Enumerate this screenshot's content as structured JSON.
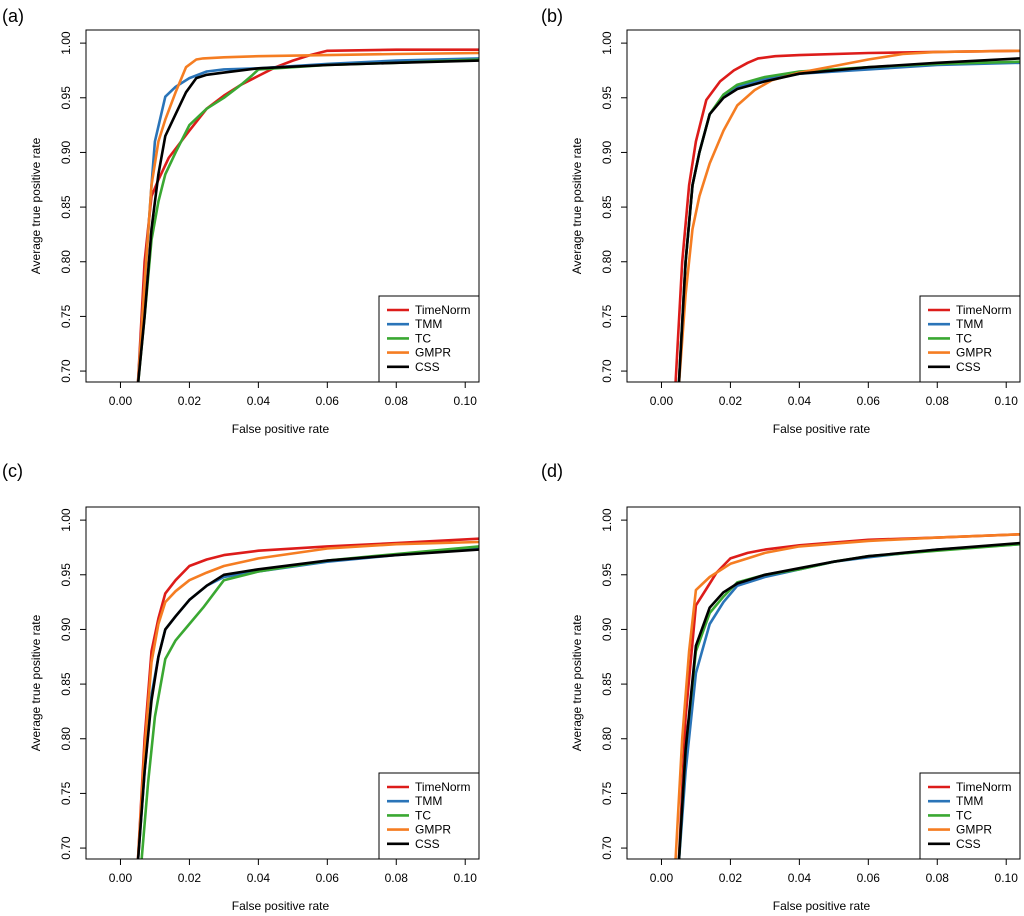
{
  "colors": {
    "TimeNorm": "#dd1c1a",
    "TMM": "#2a74b8",
    "TC": "#3aa832",
    "GMPR": "#f57d22",
    "CSS": "#000000",
    "axis": "#000000",
    "background": "#ffffff"
  },
  "chart_data": [
    {
      "panel_label": "(a)",
      "type": "line",
      "xlabel": "False positive rate",
      "ylabel": "Average true positive rate",
      "xlim": [
        -0.01,
        0.104
      ],
      "ylim": [
        0.69,
        1.012
      ],
      "xticks": [
        0.0,
        0.02,
        0.04,
        0.06,
        0.08,
        0.1
      ],
      "xtick_labels": [
        "0.00",
        "0.02",
        "0.04",
        "0.06",
        "0.08",
        "0.10"
      ],
      "yticks": [
        0.7,
        0.75,
        0.8,
        0.85,
        0.9,
        0.95,
        1.0
      ],
      "ytick_labels": [
        "0.70",
        "0.75",
        "0.80",
        "0.85",
        "0.90",
        "0.95",
        "1.00"
      ],
      "legend_position": "bottom-right",
      "series": [
        {
          "name": "TimeNorm",
          "x": [
            0.005,
            0.007,
            0.009,
            0.011,
            0.014,
            0.02,
            0.025,
            0.03,
            0.035,
            0.04,
            0.045,
            0.05,
            0.055,
            0.06,
            0.08,
            0.104
          ],
          "y": [
            0.685,
            0.8,
            0.86,
            0.875,
            0.895,
            0.92,
            0.94,
            0.952,
            0.962,
            0.97,
            0.978,
            0.984,
            0.989,
            0.993,
            0.994,
            0.994
          ]
        },
        {
          "name": "TMM",
          "x": [
            0.005,
            0.007,
            0.009,
            0.01,
            0.013,
            0.016,
            0.02,
            0.025,
            0.03,
            0.04,
            0.06,
            0.08,
            0.104
          ],
          "y": [
            0.685,
            0.78,
            0.87,
            0.91,
            0.951,
            0.96,
            0.968,
            0.974,
            0.976,
            0.977,
            0.981,
            0.984,
            0.986
          ]
        },
        {
          "name": "TC",
          "x": [
            0.005,
            0.007,
            0.009,
            0.011,
            0.013,
            0.016,
            0.02,
            0.025,
            0.03,
            0.035,
            0.038,
            0.04,
            0.06,
            0.08,
            0.104
          ],
          "y": [
            0.685,
            0.75,
            0.82,
            0.855,
            0.88,
            0.9,
            0.925,
            0.94,
            0.95,
            0.962,
            0.97,
            0.976,
            0.98,
            0.982,
            0.985
          ]
        },
        {
          "name": "GMPR",
          "x": [
            0.005,
            0.007,
            0.009,
            0.011,
            0.013,
            0.016,
            0.019,
            0.022,
            0.024,
            0.03,
            0.04,
            0.06,
            0.08,
            0.104
          ],
          "y": [
            0.685,
            0.78,
            0.87,
            0.91,
            0.93,
            0.955,
            0.978,
            0.985,
            0.986,
            0.987,
            0.988,
            0.989,
            0.99,
            0.991
          ]
        },
        {
          "name": "CSS",
          "x": [
            0.005,
            0.007,
            0.009,
            0.011,
            0.013,
            0.016,
            0.019,
            0.022,
            0.025,
            0.03,
            0.04,
            0.06,
            0.08,
            0.104
          ],
          "y": [
            0.685,
            0.75,
            0.83,
            0.88,
            0.915,
            0.935,
            0.955,
            0.968,
            0.971,
            0.973,
            0.977,
            0.98,
            0.982,
            0.984
          ]
        }
      ]
    },
    {
      "panel_label": "(b)",
      "type": "line",
      "xlabel": "False positive rate",
      "ylabel": "Average true positive rate",
      "xlim": [
        -0.01,
        0.104
      ],
      "ylim": [
        0.69,
        1.012
      ],
      "xticks": [
        0.0,
        0.02,
        0.04,
        0.06,
        0.08,
        0.1
      ],
      "xtick_labels": [
        "0.00",
        "0.02",
        "0.04",
        "0.06",
        "0.08",
        "0.10"
      ],
      "yticks": [
        0.7,
        0.75,
        0.8,
        0.85,
        0.9,
        0.95,
        1.0
      ],
      "ytick_labels": [
        "0.70",
        "0.75",
        "0.80",
        "0.85",
        "0.90",
        "0.95",
        "1.00"
      ],
      "legend_position": "bottom-right",
      "series": [
        {
          "name": "TimeNorm",
          "x": [
            0.004,
            0.006,
            0.008,
            0.01,
            0.013,
            0.017,
            0.021,
            0.025,
            0.028,
            0.033,
            0.04,
            0.06,
            0.08,
            0.104
          ],
          "y": [
            0.685,
            0.8,
            0.87,
            0.91,
            0.948,
            0.965,
            0.975,
            0.982,
            0.986,
            0.988,
            0.989,
            0.991,
            0.992,
            0.993
          ]
        },
        {
          "name": "TMM",
          "x": [
            0.005,
            0.007,
            0.009,
            0.011,
            0.014,
            0.018,
            0.022,
            0.03,
            0.04,
            0.06,
            0.08,
            0.104
          ],
          "y": [
            0.685,
            0.8,
            0.87,
            0.9,
            0.935,
            0.952,
            0.96,
            0.967,
            0.972,
            0.976,
            0.98,
            0.982
          ]
        },
        {
          "name": "TC",
          "x": [
            0.005,
            0.007,
            0.009,
            0.011,
            0.014,
            0.018,
            0.022,
            0.03,
            0.04,
            0.06,
            0.08,
            0.104
          ],
          "y": [
            0.685,
            0.8,
            0.87,
            0.9,
            0.935,
            0.953,
            0.962,
            0.969,
            0.974,
            0.978,
            0.981,
            0.983
          ]
        },
        {
          "name": "GMPR",
          "x": [
            0.005,
            0.007,
            0.009,
            0.011,
            0.014,
            0.018,
            0.022,
            0.027,
            0.032,
            0.04,
            0.05,
            0.06,
            0.07,
            0.08,
            0.104
          ],
          "y": [
            0.685,
            0.77,
            0.83,
            0.86,
            0.89,
            0.92,
            0.943,
            0.957,
            0.966,
            0.973,
            0.979,
            0.985,
            0.99,
            0.992,
            0.993
          ]
        },
        {
          "name": "CSS",
          "x": [
            0.005,
            0.007,
            0.009,
            0.011,
            0.014,
            0.018,
            0.022,
            0.03,
            0.04,
            0.06,
            0.08,
            0.104
          ],
          "y": [
            0.685,
            0.8,
            0.87,
            0.9,
            0.935,
            0.95,
            0.958,
            0.965,
            0.972,
            0.978,
            0.982,
            0.986
          ]
        }
      ]
    },
    {
      "panel_label": "(c)",
      "type": "line",
      "xlabel": "False positive rate",
      "ylabel": "Average true positive rate",
      "xlim": [
        -0.01,
        0.104
      ],
      "ylim": [
        0.69,
        1.012
      ],
      "xticks": [
        0.0,
        0.02,
        0.04,
        0.06,
        0.08,
        0.1
      ],
      "xtick_labels": [
        "0.00",
        "0.02",
        "0.04",
        "0.06",
        "0.08",
        "0.10"
      ],
      "yticks": [
        0.7,
        0.75,
        0.8,
        0.85,
        0.9,
        0.95,
        1.0
      ],
      "ytick_labels": [
        "0.70",
        "0.75",
        "0.80",
        "0.85",
        "0.90",
        "0.95",
        "1.00"
      ],
      "legend_position": "bottom-right",
      "series": [
        {
          "name": "TimeNorm",
          "x": [
            0.005,
            0.007,
            0.009,
            0.011,
            0.013,
            0.016,
            0.02,
            0.025,
            0.03,
            0.04,
            0.06,
            0.08,
            0.104
          ],
          "y": [
            0.685,
            0.8,
            0.88,
            0.91,
            0.933,
            0.945,
            0.958,
            0.964,
            0.968,
            0.972,
            0.976,
            0.979,
            0.983
          ]
        },
        {
          "name": "TMM",
          "x": [
            0.005,
            0.007,
            0.009,
            0.011,
            0.013,
            0.016,
            0.02,
            0.025,
            0.03,
            0.04,
            0.06,
            0.08,
            0.104
          ],
          "y": [
            0.685,
            0.77,
            0.84,
            0.875,
            0.9,
            0.912,
            0.927,
            0.94,
            0.948,
            0.953,
            0.962,
            0.968,
            0.974
          ]
        },
        {
          "name": "TC",
          "x": [
            0.006,
            0.008,
            0.01,
            0.013,
            0.016,
            0.02,
            0.024,
            0.03,
            0.04,
            0.06,
            0.08,
            0.104
          ],
          "y": [
            0.685,
            0.76,
            0.82,
            0.873,
            0.89,
            0.905,
            0.92,
            0.945,
            0.953,
            0.963,
            0.969,
            0.976
          ]
        },
        {
          "name": "GMPR",
          "x": [
            0.005,
            0.007,
            0.009,
            0.011,
            0.013,
            0.016,
            0.02,
            0.025,
            0.03,
            0.04,
            0.06,
            0.08,
            0.104
          ],
          "y": [
            0.685,
            0.79,
            0.87,
            0.905,
            0.925,
            0.935,
            0.945,
            0.952,
            0.958,
            0.965,
            0.974,
            0.978,
            0.98
          ]
        },
        {
          "name": "CSS",
          "x": [
            0.005,
            0.007,
            0.009,
            0.011,
            0.013,
            0.016,
            0.02,
            0.025,
            0.03,
            0.04,
            0.06,
            0.08,
            0.104
          ],
          "y": [
            0.685,
            0.77,
            0.835,
            0.875,
            0.9,
            0.912,
            0.927,
            0.94,
            0.95,
            0.955,
            0.963,
            0.968,
            0.973
          ]
        }
      ]
    },
    {
      "panel_label": "(d)",
      "type": "line",
      "xlabel": "False positive rate",
      "ylabel": "Average true positive rate",
      "xlim": [
        -0.01,
        0.104
      ],
      "ylim": [
        0.69,
        1.012
      ],
      "xticks": [
        0.0,
        0.02,
        0.04,
        0.06,
        0.08,
        0.1
      ],
      "xtick_labels": [
        "0.00",
        "0.02",
        "0.04",
        "0.06",
        "0.08",
        "0.10"
      ],
      "yticks": [
        0.7,
        0.75,
        0.8,
        0.85,
        0.9,
        0.95,
        1.0
      ],
      "ytick_labels": [
        "0.70",
        "0.75",
        "0.80",
        "0.85",
        "0.90",
        "0.95",
        "1.00"
      ],
      "legend_position": "bottom-right",
      "series": [
        {
          "name": "TimeNorm",
          "x": [
            0.005,
            0.007,
            0.01,
            0.013,
            0.016,
            0.02,
            0.025,
            0.03,
            0.04,
            0.06,
            0.08,
            0.104
          ],
          "y": [
            0.685,
            0.82,
            0.922,
            0.937,
            0.952,
            0.965,
            0.97,
            0.973,
            0.977,
            0.982,
            0.984,
            0.987
          ]
        },
        {
          "name": "TMM",
          "x": [
            0.005,
            0.007,
            0.01,
            0.014,
            0.018,
            0.022,
            0.03,
            0.04,
            0.05,
            0.06,
            0.08,
            0.104
          ],
          "y": [
            0.685,
            0.77,
            0.86,
            0.905,
            0.925,
            0.94,
            0.948,
            0.955,
            0.962,
            0.966,
            0.973,
            0.978
          ]
        },
        {
          "name": "TC",
          "x": [
            0.005,
            0.007,
            0.01,
            0.014,
            0.018,
            0.022,
            0.03,
            0.04,
            0.05,
            0.06,
            0.08,
            0.104
          ],
          "y": [
            0.685,
            0.79,
            0.88,
            0.915,
            0.93,
            0.943,
            0.95,
            0.955,
            0.962,
            0.967,
            0.972,
            0.978
          ]
        },
        {
          "name": "GMPR",
          "x": [
            0.004,
            0.006,
            0.008,
            0.01,
            0.014,
            0.02,
            0.025,
            0.03,
            0.04,
            0.06,
            0.08,
            0.104
          ],
          "y": [
            0.685,
            0.8,
            0.88,
            0.936,
            0.948,
            0.96,
            0.965,
            0.97,
            0.976,
            0.981,
            0.984,
            0.987
          ]
        },
        {
          "name": "CSS",
          "x": [
            0.005,
            0.007,
            0.01,
            0.014,
            0.018,
            0.022,
            0.03,
            0.04,
            0.05,
            0.06,
            0.08,
            0.104
          ],
          "y": [
            0.685,
            0.79,
            0.885,
            0.92,
            0.934,
            0.942,
            0.95,
            0.956,
            0.962,
            0.967,
            0.973,
            0.979
          ]
        }
      ]
    }
  ]
}
